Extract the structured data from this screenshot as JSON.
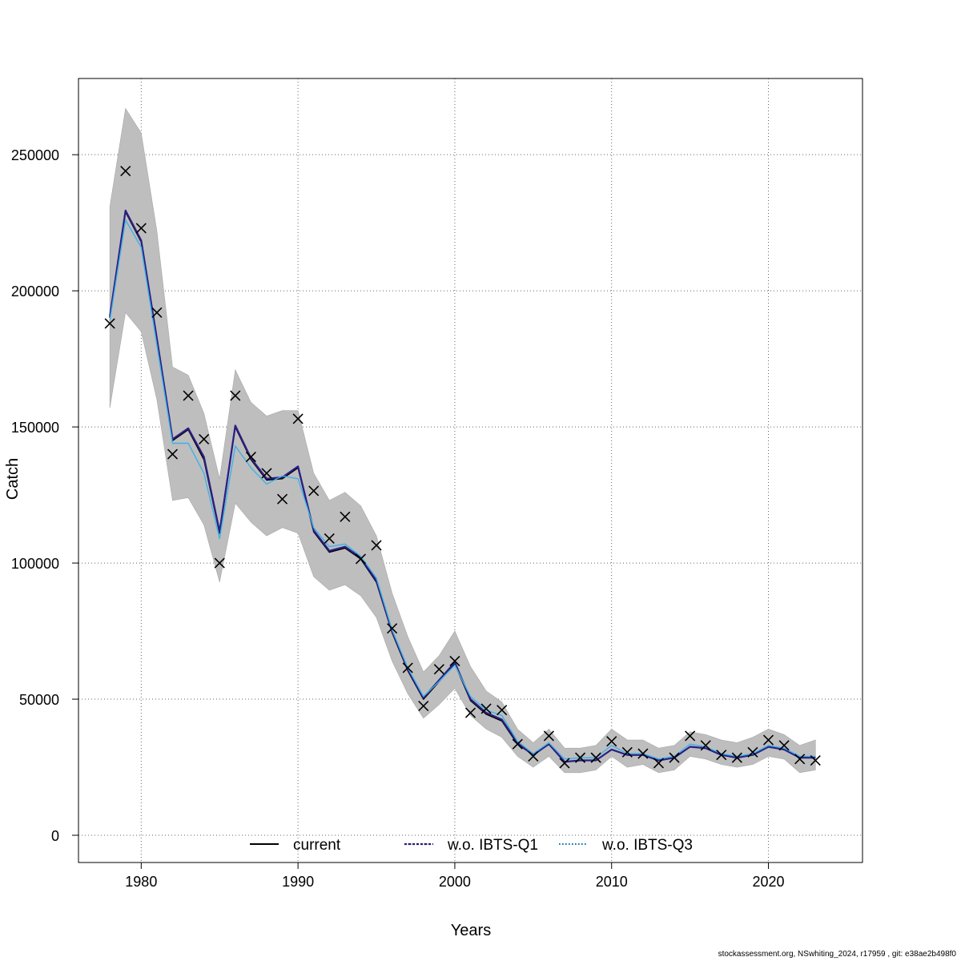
{
  "chart_data": {
    "type": "line",
    "xlabel": "Years",
    "ylabel": "Catch",
    "xlim": [
      1976,
      2026
    ],
    "ylim": [
      -10000,
      278000
    ],
    "x_ticks": [
      1980,
      1990,
      2000,
      2010,
      2020
    ],
    "y_ticks": [
      0,
      50000,
      100000,
      150000,
      200000,
      250000
    ],
    "grid": true,
    "legend_position": "bottom-center",
    "colors": {
      "band": "#bebebe",
      "current": "#000000",
      "wo_ibts_q1": "#2b1f86",
      "wo_ibts_q3": "#3fb2e6",
      "grid": "#666666"
    },
    "years": [
      1978,
      1979,
      1980,
      1981,
      1982,
      1983,
      1984,
      1985,
      1986,
      1987,
      1988,
      1989,
      1990,
      1991,
      1992,
      1993,
      1994,
      1995,
      1996,
      1997,
      1998,
      1999,
      2000,
      2001,
      2002,
      2003,
      2004,
      2005,
      2006,
      2007,
      2008,
      2009,
      2010,
      2011,
      2012,
      2013,
      2014,
      2015,
      2016,
      2017,
      2018,
      2019,
      2020,
      2021,
      2022,
      2023
    ],
    "band_upper": [
      231000,
      267000,
      258000,
      222000,
      172000,
      169000,
      155000,
      131000,
      171000,
      159000,
      154000,
      156000,
      156000,
      133000,
      123000,
      126000,
      121000,
      110000,
      89000,
      73000,
      60000,
      66000,
      75000,
      62000,
      53000,
      49000,
      39000,
      34000,
      39000,
      32000,
      32000,
      33000,
      39000,
      35000,
      35000,
      32000,
      33000,
      38000,
      37000,
      35000,
      34000,
      36000,
      39000,
      37000,
      33000,
      35000
    ],
    "band_lower": [
      157000,
      192000,
      185000,
      160000,
      123000,
      124000,
      114000,
      93000,
      122000,
      115000,
      110000,
      113000,
      111000,
      95000,
      90000,
      92000,
      88000,
      80000,
      64000,
      52000,
      43000,
      48000,
      54000,
      44000,
      39000,
      36000,
      29000,
      25000,
      29000,
      23000,
      23000,
      24000,
      29000,
      25000,
      26000,
      23000,
      24000,
      29000,
      28000,
      26000,
      25000,
      26000,
      29000,
      28000,
      23000,
      24000
    ],
    "observed": [
      188000,
      244000,
      223000,
      192000,
      140000,
      161500,
      145500,
      100000,
      161500,
      139000,
      133000,
      123500,
      153000,
      126500,
      109000,
      117000,
      101500,
      106500,
      76000,
      61500,
      47500,
      61000,
      64000,
      45000,
      46500,
      46000,
      33500,
      29000,
      36500,
      26500,
      28500,
      28500,
      34500,
      30500,
      30000,
      26500,
      28500,
      36500,
      33000,
      29500,
      28500,
      30500,
      35000,
      33000,
      28000,
      27500
    ],
    "series": [
      {
        "name": "current",
        "values": [
          190000,
          229000,
          218000,
          182000,
          145000,
          149000,
          138000,
          111000,
          150000,
          138000,
          130500,
          131000,
          135000,
          111500,
          104000,
          105500,
          101500,
          93000,
          74500,
          60500,
          50000,
          56500,
          63000,
          49500,
          44500,
          42000,
          33500,
          29500,
          33500,
          27000,
          27500,
          27500,
          31500,
          29500,
          29500,
          27500,
          28500,
          32500,
          32000,
          29500,
          28500,
          29500,
          32500,
          31500,
          28500,
          28500
        ]
      },
      {
        "name": "w.o. IBTS-Q1",
        "values": [
          190500,
          229500,
          218500,
          182500,
          145500,
          149500,
          139000,
          111500,
          150500,
          138500,
          131000,
          131500,
          135500,
          112000,
          104500,
          106000,
          102000,
          93500,
          75000,
          61000,
          50500,
          57000,
          63500,
          50000,
          45000,
          42500,
          34000,
          29500,
          33500,
          27000,
          27500,
          27500,
          31500,
          29500,
          29500,
          27500,
          28500,
          32500,
          32000,
          29500,
          28500,
          29500,
          32500,
          31500,
          28500,
          28500
        ]
      },
      {
        "name": "w.o. IBTS-Q3",
        "values": [
          189000,
          226000,
          216000,
          180000,
          144000,
          144000,
          133000,
          109000,
          143000,
          135000,
          129000,
          132000,
          131000,
          113000,
          106000,
          107000,
          102500,
          94500,
          75500,
          61500,
          51000,
          56500,
          62500,
          51000,
          46000,
          44000,
          34500,
          30000,
          34000,
          28000,
          28500,
          28500,
          33000,
          30000,
          30000,
          28000,
          29000,
          33500,
          32500,
          30000,
          29000,
          30000,
          33000,
          32000,
          29000,
          29000
        ]
      }
    ]
  },
  "footer_text": "stockassessment.org, NSwhiting_2024, r17959 , git: e38ae2b498f0"
}
